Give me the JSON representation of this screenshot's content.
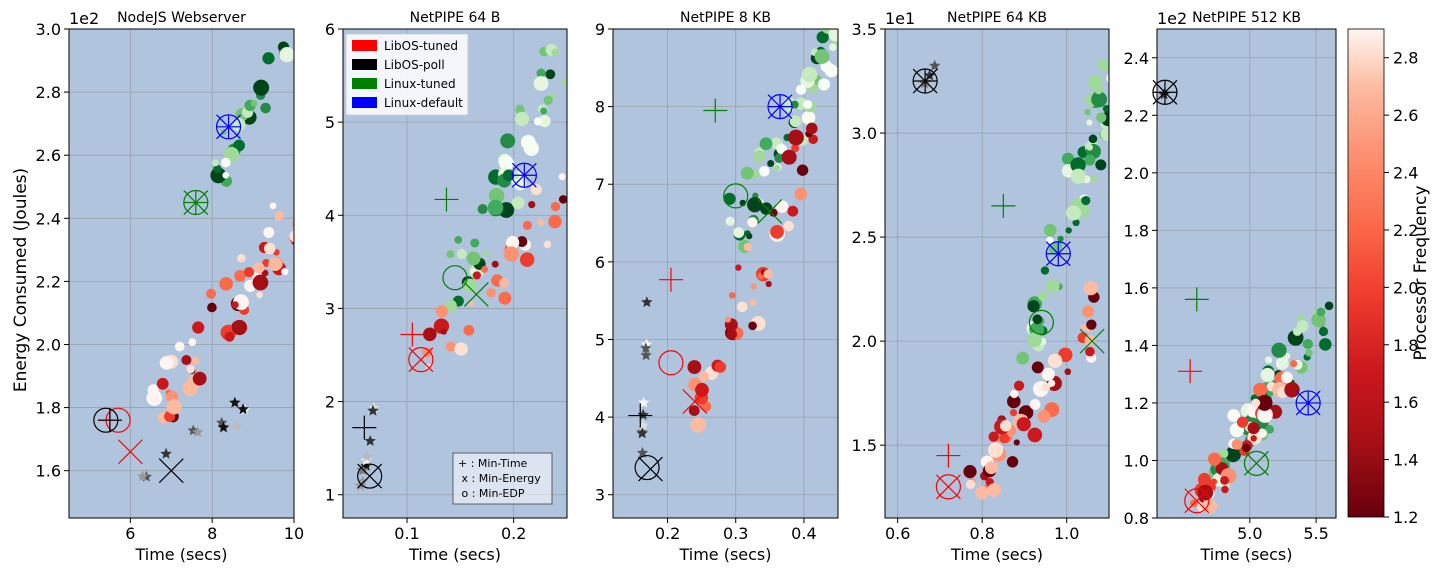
{
  "figure": {
    "ylabel": "Energy Consumed (Joules)",
    "colorbar_label": "Processor Frequency",
    "colorbar_ticks": [
      "1.2",
      "1.4",
      "1.6",
      "1.8",
      "2.0",
      "2.2",
      "2.4",
      "2.6",
      "2.8"
    ],
    "colorbar_range": [
      1.2,
      2.9
    ],
    "legend": [
      {
        "label": "LibOS-tuned",
        "color": "#ff0000"
      },
      {
        "label": "LibOS-poll",
        "color": "#000000"
      },
      {
        "label": "Linux-tuned",
        "color": "#008000"
      },
      {
        "label": "Linux-default",
        "color": "#0000ff"
      }
    ],
    "marker_key": [
      "+ : Min-Time",
      " x : Min-Energy",
      " o : Min-EDP"
    ]
  },
  "chart_data": [
    {
      "type": "scatter",
      "title": "NodeJS Webserver",
      "xlabel": "Time (secs)",
      "multiplier": "1e2",
      "xlim": [
        4.5,
        10
      ],
      "ylim": [
        1.45,
        3.0
      ],
      "xticks": [
        {
          "v": 6,
          "t": "6"
        },
        {
          "v": 8,
          "t": "8"
        },
        {
          "v": 10,
          "t": "10"
        }
      ],
      "yticks": [
        {
          "v": 1.6,
          "t": "1.6"
        },
        {
          "v": 1.8,
          "t": "1.8"
        },
        {
          "v": 2.0,
          "t": "2.0"
        },
        {
          "v": 2.2,
          "t": "2.2"
        },
        {
          "v": 2.4,
          "t": "2.4"
        },
        {
          "v": 2.6,
          "t": "2.6"
        },
        {
          "v": 2.8,
          "t": "2.8"
        },
        {
          "v": 3.0,
          "t": "3.0"
        }
      ],
      "clusters": [
        {
          "group": "linux",
          "x0": 7.5,
          "y0": 2.5,
          "x1": 10,
          "y1": 3.0,
          "n": 24
        },
        {
          "group": "libos",
          "x0": 5.8,
          "y0": 1.75,
          "x1": 10,
          "y1": 2.4,
          "n": 60
        },
        {
          "group": "poll",
          "x0": 5.9,
          "y0": 1.6,
          "x1": 9.8,
          "y1": 1.88,
          "n": 12
        }
      ],
      "optima": [
        {
          "series": "LibOS-tuned",
          "metric": "Min-Time",
          "x": 5.5,
          "y": 1.76
        },
        {
          "series": "LibOS-tuned",
          "metric": "Min-Energy",
          "x": 6.0,
          "y": 1.66
        },
        {
          "series": "LibOS-tuned",
          "metric": "Min-EDP",
          "x": 5.7,
          "y": 1.76
        },
        {
          "series": "LibOS-poll",
          "metric": "Min-Time",
          "x": 5.5,
          "y": 1.76
        },
        {
          "series": "LibOS-poll",
          "metric": "Min-Energy",
          "x": 7.0,
          "y": 1.6
        },
        {
          "series": "LibOS-poll",
          "metric": "Min-EDP",
          "x": 5.4,
          "y": 1.76
        },
        {
          "series": "Linux-tuned",
          "metric": "Min-Time",
          "x": 7.6,
          "y": 2.45
        },
        {
          "series": "Linux-tuned",
          "metric": "Min-Energy",
          "x": 7.6,
          "y": 2.45
        },
        {
          "series": "Linux-tuned",
          "metric": "Min-EDP",
          "x": 7.6,
          "y": 2.45
        },
        {
          "series": "Linux-default",
          "metric": "Min-Time",
          "x": 8.4,
          "y": 2.69
        },
        {
          "series": "Linux-default",
          "metric": "Min-Energy",
          "x": 8.4,
          "y": 2.69
        },
        {
          "series": "Linux-default",
          "metric": "Min-EDP",
          "x": 8.4,
          "y": 2.69
        }
      ]
    },
    {
      "type": "scatter",
      "title": "NetPIPE 64 B",
      "xlabel": "Time (secs)",
      "multiplier": "",
      "xlim": [
        0.04,
        0.25
      ],
      "ylim": [
        0.75,
        6.0
      ],
      "xticks": [
        {
          "v": 0.1,
          "t": "0.1"
        },
        {
          "v": 0.2,
          "t": "0.2"
        }
      ],
      "yticks": [
        {
          "v": 1,
          "t": "1"
        },
        {
          "v": 2,
          "t": "2"
        },
        {
          "v": 3,
          "t": "3"
        },
        {
          "v": 4,
          "t": "4"
        },
        {
          "v": 5,
          "t": "5"
        },
        {
          "v": 6,
          "t": "6"
        }
      ],
      "clusters": [
        {
          "group": "linux",
          "x0": 0.13,
          "y0": 3.2,
          "x1": 0.25,
          "y1": 6.0,
          "n": 50
        },
        {
          "group": "libos",
          "x0": 0.1,
          "y0": 2.4,
          "x1": 0.25,
          "y1": 4.4,
          "n": 34
        },
        {
          "group": "poll",
          "x0": 0.055,
          "y0": 1.15,
          "x1": 0.07,
          "y1": 1.95,
          "n": 10
        }
      ],
      "optima": [
        {
          "series": "LibOS-tuned",
          "metric": "Min-Time",
          "x": 0.105,
          "y": 2.72
        },
        {
          "series": "LibOS-tuned",
          "metric": "Min-Energy",
          "x": 0.113,
          "y": 2.45
        },
        {
          "series": "LibOS-tuned",
          "metric": "Min-EDP",
          "x": 0.113,
          "y": 2.45
        },
        {
          "series": "LibOS-poll",
          "metric": "Min-Time",
          "x": 0.06,
          "y": 1.72
        },
        {
          "series": "LibOS-poll",
          "metric": "Min-Energy",
          "x": 0.065,
          "y": 1.2
        },
        {
          "series": "LibOS-poll",
          "metric": "Min-EDP",
          "x": 0.065,
          "y": 1.2
        },
        {
          "series": "Linux-tuned",
          "metric": "Min-Time",
          "x": 0.137,
          "y": 4.17
        },
        {
          "series": "Linux-tuned",
          "metric": "Min-Energy",
          "x": 0.165,
          "y": 3.15
        },
        {
          "series": "Linux-tuned",
          "metric": "Min-EDP",
          "x": 0.145,
          "y": 3.33
        },
        {
          "series": "Linux-default",
          "metric": "Min-Time",
          "x": 0.21,
          "y": 4.43
        },
        {
          "series": "Linux-default",
          "metric": "Min-Energy",
          "x": 0.21,
          "y": 4.43
        },
        {
          "series": "Linux-default",
          "metric": "Min-EDP",
          "x": 0.21,
          "y": 4.43
        }
      ]
    },
    {
      "type": "scatter",
      "title": "NetPIPE 8 KB",
      "xlabel": "Time (secs)",
      "multiplier": "",
      "xlim": [
        0.12,
        0.45
      ],
      "ylim": [
        2.7,
        9.0
      ],
      "xticks": [
        {
          "v": 0.2,
          "t": "0.2"
        },
        {
          "v": 0.3,
          "t": "0.3"
        },
        {
          "v": 0.4,
          "t": "0.4"
        }
      ],
      "yticks": [
        {
          "v": 3,
          "t": "3"
        },
        {
          "v": 4,
          "t": "4"
        },
        {
          "v": 5,
          "t": "5"
        },
        {
          "v": 6,
          "t": "6"
        },
        {
          "v": 7,
          "t": "7"
        },
        {
          "v": 8,
          "t": "8"
        },
        {
          "v": 9,
          "t": "9"
        }
      ],
      "clusters": [
        {
          "group": "linux",
          "x0": 0.27,
          "y0": 6.4,
          "x1": 0.45,
          "y1": 9.0,
          "n": 56
        },
        {
          "group": "libos",
          "x0": 0.2,
          "y0": 4.0,
          "x1": 0.42,
          "y1": 7.6,
          "n": 44
        },
        {
          "group": "poll",
          "x0": 0.16,
          "y0": 3.3,
          "x1": 0.17,
          "y1": 5.3,
          "n": 10
        }
      ],
      "optima": [
        {
          "series": "LibOS-tuned",
          "metric": "Min-Time",
          "x": 0.205,
          "y": 5.77
        },
        {
          "series": "LibOS-tuned",
          "metric": "Min-Energy",
          "x": 0.24,
          "y": 4.2
        },
        {
          "series": "LibOS-tuned",
          "metric": "Min-EDP",
          "x": 0.205,
          "y": 4.7
        },
        {
          "series": "LibOS-poll",
          "metric": "Min-Time",
          "x": 0.16,
          "y": 4.02
        },
        {
          "series": "LibOS-poll",
          "metric": "Min-Energy",
          "x": 0.175,
          "y": 3.33
        },
        {
          "series": "LibOS-poll",
          "metric": "Min-EDP",
          "x": 0.17,
          "y": 3.35
        },
        {
          "series": "Linux-tuned",
          "metric": "Min-Time",
          "x": 0.27,
          "y": 7.95
        },
        {
          "series": "Linux-tuned",
          "metric": "Min-Energy",
          "x": 0.35,
          "y": 6.65
        },
        {
          "series": "Linux-tuned",
          "metric": "Min-EDP",
          "x": 0.3,
          "y": 6.85
        },
        {
          "series": "Linux-default",
          "metric": "Min-Time",
          "x": 0.365,
          "y": 8.0
        },
        {
          "series": "Linux-default",
          "metric": "Min-Energy",
          "x": 0.365,
          "y": 8.0
        },
        {
          "series": "Linux-default",
          "metric": "Min-EDP",
          "x": 0.365,
          "y": 8.0
        }
      ]
    },
    {
      "type": "scatter",
      "title": "NetPIPE 64 KB",
      "xlabel": "Time (secs)",
      "multiplier": "1e1",
      "xlim": [
        0.57,
        1.1
      ],
      "ylim": [
        1.15,
        3.5
      ],
      "xticks": [
        {
          "v": 0.6,
          "t": "0.6"
        },
        {
          "v": 0.8,
          "t": "0.8"
        },
        {
          "v": 1.0,
          "t": "1.0"
        }
      ],
      "yticks": [
        {
          "v": 1.5,
          "t": "1.5"
        },
        {
          "v": 2.0,
          "t": "2.0"
        },
        {
          "v": 2.5,
          "t": "2.5"
        },
        {
          "v": 3.0,
          "t": "3.0"
        },
        {
          "v": 3.5,
          "t": "3.5"
        }
      ],
      "clusters": [
        {
          "group": "linux",
          "x0": 0.86,
          "y0": 1.95,
          "x1": 1.1,
          "y1": 3.2,
          "n": 60
        },
        {
          "group": "libos",
          "x0": 0.72,
          "y0": 1.3,
          "x1": 1.1,
          "y1": 2.2,
          "n": 58
        },
        {
          "group": "poll",
          "x0": 0.66,
          "y0": 3.22,
          "x1": 0.69,
          "y1": 3.34,
          "n": 4
        }
      ],
      "optima": [
        {
          "series": "LibOS-tuned",
          "metric": "Min-Time",
          "x": 0.72,
          "y": 1.45
        },
        {
          "series": "LibOS-tuned",
          "metric": "Min-Energy",
          "x": 0.72,
          "y": 1.3
        },
        {
          "series": "LibOS-tuned",
          "metric": "Min-EDP",
          "x": 0.72,
          "y": 1.3
        },
        {
          "series": "LibOS-poll",
          "metric": "Min-Time",
          "x": 0.665,
          "y": 3.25
        },
        {
          "series": "LibOS-poll",
          "metric": "Min-Energy",
          "x": 0.665,
          "y": 3.25
        },
        {
          "series": "LibOS-poll",
          "metric": "Min-EDP",
          "x": 0.665,
          "y": 3.25
        },
        {
          "series": "Linux-tuned",
          "metric": "Min-Time",
          "x": 0.85,
          "y": 2.65
        },
        {
          "series": "Linux-tuned",
          "metric": "Min-Energy",
          "x": 1.06,
          "y": 2.0
        },
        {
          "series": "Linux-tuned",
          "metric": "Min-EDP",
          "x": 0.94,
          "y": 2.09
        },
        {
          "series": "Linux-default",
          "metric": "Min-Time",
          "x": 0.98,
          "y": 2.42
        },
        {
          "series": "Linux-default",
          "metric": "Min-Energy",
          "x": 0.98,
          "y": 2.42
        },
        {
          "series": "Linux-default",
          "metric": "Min-EDP",
          "x": 0.98,
          "y": 2.42
        }
      ]
    },
    {
      "type": "scatter",
      "title": "NetPIPE 512 KB",
      "xlabel": "Time (secs)",
      "multiplier": "1e2",
      "xlim": [
        4.3,
        5.65
      ],
      "ylim": [
        0.8,
        2.5
      ],
      "xticks": [
        {
          "v": 5.0,
          "t": "5.0"
        },
        {
          "v": 5.5,
          "t": "5.5"
        }
      ],
      "yticks": [
        {
          "v": 0.8,
          "t": "0.8"
        },
        {
          "v": 1.0,
          "t": "1.0"
        },
        {
          "v": 1.2,
          "t": "1.2"
        },
        {
          "v": 1.4,
          "t": "1.4"
        },
        {
          "v": 1.6,
          "t": "1.6"
        },
        {
          "v": 1.8,
          "t": "1.8"
        },
        {
          "v": 2.0,
          "t": "2.0"
        },
        {
          "v": 2.2,
          "t": "2.2"
        },
        {
          "v": 2.4,
          "t": "2.4"
        }
      ],
      "clusters": [
        {
          "group": "linux",
          "x0": 4.55,
          "y0": 0.95,
          "x1": 5.65,
          "y1": 1.55,
          "n": 58
        },
        {
          "group": "libos",
          "x0": 4.5,
          "y0": 0.85,
          "x1": 5.3,
          "y1": 1.3,
          "n": 48
        },
        {
          "group": "poll",
          "x0": 4.35,
          "y0": 2.27,
          "x1": 4.37,
          "y1": 2.29,
          "n": 1
        }
      ],
      "optima": [
        {
          "series": "LibOS-tuned",
          "metric": "Min-Time",
          "x": 4.55,
          "y": 1.31
        },
        {
          "series": "LibOS-tuned",
          "metric": "Min-Energy",
          "x": 4.6,
          "y": 0.86
        },
        {
          "series": "LibOS-tuned",
          "metric": "Min-EDP",
          "x": 4.6,
          "y": 0.86
        },
        {
          "series": "LibOS-poll",
          "metric": "Min-Time",
          "x": 4.36,
          "y": 2.28
        },
        {
          "series": "LibOS-poll",
          "metric": "Min-Energy",
          "x": 4.36,
          "y": 2.28
        },
        {
          "series": "LibOS-poll",
          "metric": "Min-EDP",
          "x": 4.36,
          "y": 2.28
        },
        {
          "series": "Linux-tuned",
          "metric": "Min-Time",
          "x": 4.6,
          "y": 1.56
        },
        {
          "series": "Linux-tuned",
          "metric": "Min-Energy",
          "x": 5.05,
          "y": 0.99
        },
        {
          "series": "Linux-tuned",
          "metric": "Min-EDP",
          "x": 5.05,
          "y": 0.99
        },
        {
          "series": "Linux-default",
          "metric": "Min-Time",
          "x": 5.44,
          "y": 1.2
        },
        {
          "series": "Linux-default",
          "metric": "Min-Energy",
          "x": 5.44,
          "y": 1.2
        },
        {
          "series": "Linux-default",
          "metric": "Min-EDP",
          "x": 5.44,
          "y": 1.2
        }
      ]
    }
  ]
}
